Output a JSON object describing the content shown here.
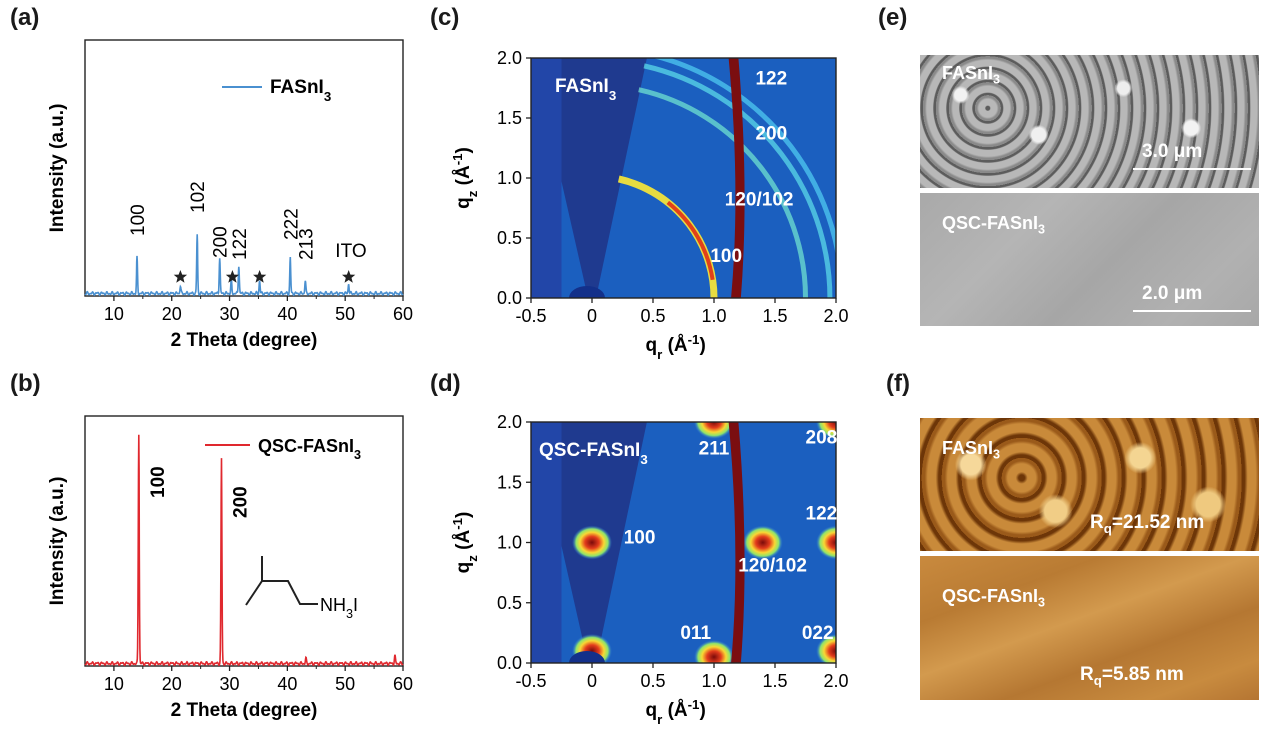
{
  "panels": {
    "a": "(a)",
    "b": "(b)",
    "c": "(c)",
    "d": "(d)",
    "e": "(e)",
    "f": "(f)"
  },
  "chart_data": [
    {
      "id": "a",
      "type": "line",
      "xlabel": "2 Theta (degree)",
      "ylabel": "Intensity (a.u.)",
      "xlim": [
        5,
        60
      ],
      "xticks": [
        10,
        20,
        30,
        40,
        50,
        60
      ],
      "color": "#4a90d0",
      "series": [
        {
          "name": "FASnI3",
          "peaks": [
            {
              "x": 14.0,
              "h": 0.14
            },
            {
              "x": 21.5,
              "h": 0.03
            },
            {
              "x": 24.4,
              "h": 0.23
            },
            {
              "x": 28.3,
              "h": 0.14
            },
            {
              "x": 30.3,
              "h": 0.05
            },
            {
              "x": 31.6,
              "h": 0.11
            },
            {
              "x": 35.2,
              "h": 0.05
            },
            {
              "x": 40.5,
              "h": 0.14
            },
            {
              "x": 43.1,
              "h": 0.05
            },
            {
              "x": 50.6,
              "h": 0.04
            }
          ]
        }
      ],
      "peak_labels": [
        {
          "x": 14.0,
          "text": "100"
        },
        {
          "x": 24.4,
          "text": "102"
        },
        {
          "x": 28.3,
          "text": "200"
        },
        {
          "x": 31.6,
          "text": "122"
        },
        {
          "x": 40.5,
          "text": "222"
        },
        {
          "x": 43.1,
          "text": "213"
        }
      ],
      "ito_label": {
        "x": 51.0,
        "text": "ITO"
      },
      "stars": [
        21.5,
        30.5,
        35.2,
        50.6
      ]
    },
    {
      "id": "b",
      "type": "line",
      "xlabel": "2 Theta (degree)",
      "ylabel": "Intensity (a.u.)",
      "xlim": [
        5,
        60
      ],
      "xticks": [
        10,
        20,
        30,
        40,
        50,
        60
      ],
      "color": "#e0282e",
      "series": [
        {
          "name": "QSC-FASnI3",
          "peaks": [
            {
              "x": 14.3,
              "h": 0.92
            },
            {
              "x": 28.6,
              "h": 0.82
            },
            {
              "x": 43.2,
              "h": 0.02
            },
            {
              "x": 58.6,
              "h": 0.03
            }
          ]
        }
      ],
      "peak_labels": [
        {
          "x": 14.3,
          "text": "100"
        },
        {
          "x": 28.6,
          "text": "200"
        }
      ],
      "molecule_text": "NH3I"
    },
    {
      "id": "c",
      "type": "heatmap",
      "xlabel": "qr (Å-1)",
      "ylabel": "qz (Å-1)",
      "xlim": [
        -0.5,
        2.0
      ],
      "ylim": [
        0.0,
        2.0
      ],
      "xticks": [
        "-0.5",
        "0",
        "0.5",
        "1.0",
        "1.5",
        "2.0"
      ],
      "yticks": [
        "0.0",
        "0.5",
        "1.0",
        "1.5",
        "2.0"
      ],
      "title_in_plot": "FASnI3",
      "rings": [
        1.0,
        1.75,
        1.95,
        2.05
      ],
      "annotations": [
        {
          "text": "100",
          "q": [
            1.1,
            0.3
          ]
        },
        {
          "text": "120/102",
          "q": [
            1.37,
            0.77
          ]
        },
        {
          "text": "200",
          "q": [
            1.47,
            1.32
          ]
        },
        {
          "text": "122",
          "q": [
            1.47,
            1.78
          ]
        }
      ]
    },
    {
      "id": "d",
      "type": "heatmap",
      "xlabel": "qr (Å-1)",
      "ylabel": "qz (Å-1)",
      "xlim": [
        -0.5,
        2.0
      ],
      "ylim": [
        0.0,
        2.0
      ],
      "xticks": [
        "-0.5",
        "0",
        "0.5",
        "1.0",
        "1.5",
        "2.0"
      ],
      "yticks": [
        "0.0",
        "0.5",
        "1.0",
        "1.5",
        "2.0"
      ],
      "title_in_plot": "QSC-FASnI3",
      "spots": [
        {
          "q": [
            1.0,
            2.0
          ]
        },
        {
          "q": [
            2.0,
            2.0
          ]
        },
        {
          "q": [
            0.0,
            1.0
          ]
        },
        {
          "q": [
            1.4,
            1.0
          ]
        },
        {
          "q": [
            2.0,
            1.0
          ]
        },
        {
          "q": [
            1.0,
            0.05
          ]
        },
        {
          "q": [
            2.0,
            0.1
          ]
        },
        {
          "q": [
            0.0,
            0.1
          ]
        }
      ],
      "annotations": [
        {
          "text": "211",
          "q": [
            1.0,
            1.73
          ]
        },
        {
          "text": "208",
          "q": [
            1.88,
            1.82
          ]
        },
        {
          "text": "100",
          "q": [
            0.39,
            0.99
          ]
        },
        {
          "text": "122",
          "q": [
            1.88,
            1.19
          ]
        },
        {
          "text": "120/102",
          "q": [
            1.48,
            0.76
          ]
        },
        {
          "text": "011",
          "q": [
            0.85,
            0.2
          ]
        },
        {
          "text": "022",
          "q": [
            1.85,
            0.2
          ]
        }
      ]
    }
  ],
  "images": {
    "e": {
      "top_label": "FASnI3",
      "top_scale": "3.0 μm",
      "bottom_label": "QSC-FASnI3",
      "bottom_scale": "2.0 μm"
    },
    "f": {
      "top_label": "FASnI3",
      "top_rq": "Rq=21.52 nm",
      "bottom_label": "QSC-FASnI3",
      "bottom_rq": "Rq=5.85 nm"
    }
  },
  "colors": {
    "xrd_blue": "#4a90d0",
    "xrd_red": "#e0282e",
    "giwaxs_bg": "#1b5fbf",
    "giwaxs_gap": "#7b0e10",
    "afm_dark": "#7a3f0b",
    "afm_light": "#e6b86a"
  }
}
